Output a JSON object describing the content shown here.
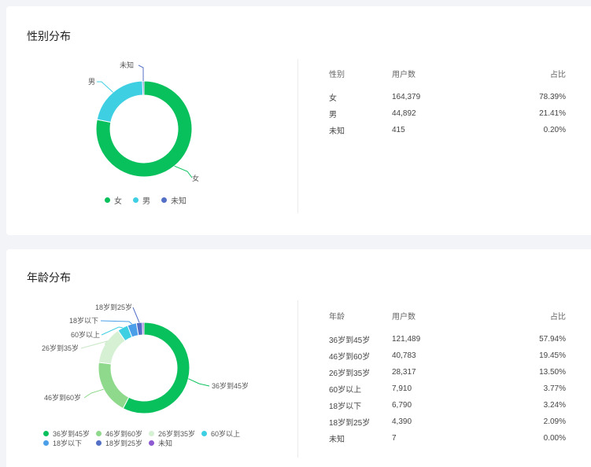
{
  "gender_section": {
    "title": "性别分布",
    "table": {
      "headers": [
        "性别",
        "用户数",
        "占比"
      ],
      "rows": [
        [
          "女",
          "164,379",
          "78.39%"
        ],
        [
          "男",
          "44,892",
          "21.41%"
        ],
        [
          "未知",
          "415",
          "0.20%"
        ]
      ]
    }
  },
  "age_section": {
    "title": "年龄分布",
    "table": {
      "headers": [
        "年龄",
        "用户数",
        "占比"
      ],
      "rows": [
        [
          "36岁到45岁",
          "121,489",
          "57.94%"
        ],
        [
          "46岁到60岁",
          "40,783",
          "19.45%"
        ],
        [
          "26岁到35岁",
          "28,317",
          "13.50%"
        ],
        [
          "60岁以上",
          "7,910",
          "3.77%"
        ],
        [
          "18岁以下",
          "6,790",
          "3.24%"
        ],
        [
          "18岁到25岁",
          "4,390",
          "2.09%"
        ],
        [
          "未知",
          "7",
          "0.00%"
        ]
      ]
    }
  },
  "chart_data": [
    {
      "type": "pie",
      "donut": true,
      "categories": [
        "女",
        "男",
        "未知"
      ],
      "values": [
        164379,
        44892,
        415
      ],
      "colors": [
        "#09c15c",
        "#3fcfe3",
        "#5470c6"
      ],
      "legend": [
        "女",
        "男",
        "未知"
      ],
      "legend_position": "bottom"
    },
    {
      "type": "pie",
      "donut": true,
      "categories": [
        "36岁到45岁",
        "46岁到60岁",
        "26岁到35岁",
        "60岁以上",
        "18岁以下",
        "18岁到25岁",
        "未知"
      ],
      "values": [
        121489,
        40783,
        28317,
        7910,
        6790,
        4390,
        7
      ],
      "colors": [
        "#09c15c",
        "#8fd98c",
        "#d5f0d3",
        "#3fcfe3",
        "#4a9fe8",
        "#5470c6",
        "#8e5ad1"
      ],
      "legend": [
        "36岁到45岁",
        "46岁到60岁",
        "26岁到35岁",
        "60岁以上",
        "18岁以下",
        "18岁到25岁",
        "未知"
      ],
      "legend_position": "bottom"
    }
  ]
}
